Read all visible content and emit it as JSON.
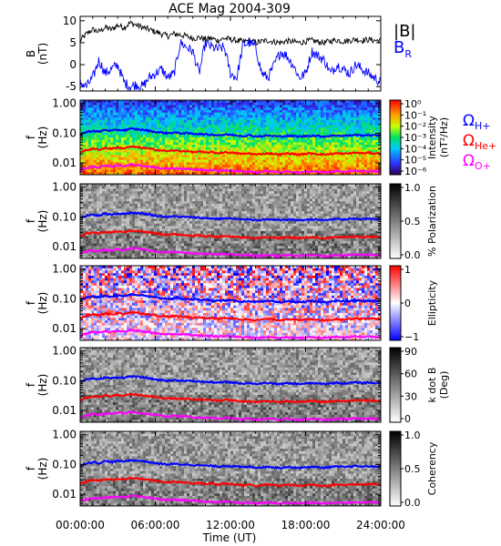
{
  "chart_data": {
    "type": "multi-panel spectrogram",
    "title": "ACE Mag 2004-309",
    "xlabel": "Time (UT)",
    "x_ticks": [
      "00:00:00",
      "06:00:00",
      "12:00:00",
      "18:00:00",
      "24:00:00"
    ],
    "xlim_hours": [
      0,
      24
    ],
    "colors": {
      "B_total": "#000000",
      "B_R": "#0000ff",
      "H_plus": "#0000ff",
      "He_plus": "#ff0000",
      "O_plus": "#ff00ff"
    },
    "panels": [
      {
        "id": "field",
        "type": "line",
        "ylabel": [
          "B",
          "(nT)"
        ],
        "y_ticks": [
          "10",
          "5",
          "0",
          "-5"
        ],
        "ylim": [
          -6,
          11
        ],
        "legend": [
          "|B|",
          "B"
        ],
        "legend_subscript": "R",
        "series": [
          {
            "name": "|B|",
            "x": [
              0,
              0.5,
              1,
              1.5,
              2,
              2.5,
              3,
              3.5,
              4,
              4.5,
              5,
              5.5,
              6,
              6.5,
              7,
              7.5,
              8,
              8.5,
              9,
              9.5,
              10,
              10.5,
              11,
              11.5,
              12,
              12.5,
              13,
              13.5,
              14,
              14.5,
              15,
              15.5,
              16,
              16.5,
              17,
              17.5,
              18,
              18.5,
              19,
              19.5,
              20,
              20.5,
              21,
              21.5,
              22,
              22.5,
              23,
              23.5,
              24
            ],
            "values": [
              5.5,
              7,
              8,
              7.5,
              8.5,
              8,
              9,
              8.5,
              9.5,
              9,
              8.5,
              8,
              7.5,
              7,
              6.5,
              7,
              6.8,
              6.5,
              6,
              6.2,
              5.8,
              6,
              5.5,
              6,
              5.8,
              5.5,
              5.2,
              5.5,
              5,
              5.3,
              5.5,
              5.2,
              5,
              5.4,
              5.2,
              5,
              5.3,
              5.5,
              5.2,
              5,
              5.4,
              5.6,
              5.3,
              5.5,
              5.8,
              5.5,
              5.7,
              5.5,
              5.5
            ]
          },
          {
            "name": "B_R",
            "x": [
              0,
              0.5,
              1,
              1.5,
              2,
              2.5,
              3,
              3.5,
              4,
              4.5,
              5,
              5.5,
              6,
              6.5,
              7,
              7.5,
              8,
              8.5,
              9,
              9.5,
              10,
              10.5,
              11,
              11.5,
              12,
              12.5,
              13,
              13.5,
              14,
              14.5,
              15,
              15.5,
              16,
              16.5,
              17,
              17.5,
              18,
              18.5,
              19,
              19.5,
              20,
              20.5,
              21,
              21.5,
              22,
              22.5,
              23,
              23.5,
              24
            ],
            "values": [
              -4,
              -5,
              -3,
              1,
              -2,
              -1,
              0,
              -4,
              -5,
              -4.5,
              -5,
              -3,
              -2,
              -1,
              -3,
              -2,
              5,
              4,
              3,
              -2,
              5,
              4,
              3.5,
              4,
              -2,
              -3,
              4.5,
              5,
              4,
              -2,
              -3,
              0,
              3,
              2,
              0,
              -3,
              -2,
              3,
              2,
              1,
              -2,
              0,
              -1,
              -2,
              0,
              -1,
              -2,
              -3,
              -4
            ]
          }
        ]
      },
      {
        "id": "intensity",
        "type": "heatmap",
        "ylabel": [
          "f",
          "(Hz)"
        ],
        "y_ticks": [
          "1.00",
          "0.10",
          "0.01"
        ],
        "ylim": [
          0.004,
          1.3
        ],
        "yscale": "log",
        "colorbar": {
          "label": [
            "Intensity",
            "(nT²/Hz)"
          ],
          "ticks": [
            "10⁰",
            "10⁻¹",
            "10⁻²",
            "10⁻³",
            "10⁻⁴",
            "10⁻⁵",
            "10⁻⁶"
          ],
          "colormap": "rainbow"
        },
        "legend": [
          {
            "symbol": "Ω",
            "sub": "H+",
            "color": "#0000ff"
          },
          {
            "symbol": "Ω",
            "sub": "He+",
            "color": "#ff0000"
          },
          {
            "symbol": "Ω",
            "sub": "O+",
            "color": "#ff00ff"
          }
        ]
      },
      {
        "id": "polarization",
        "type": "heatmap",
        "ylabel": [
          "f",
          "(Hz)"
        ],
        "y_ticks": [
          "1.00",
          "0.10",
          "0.01"
        ],
        "yscale": "log",
        "colorbar": {
          "label": [
            "% Polarization"
          ],
          "ticks": [
            "1.0",
            "0.5",
            "0.0"
          ],
          "colormap": "gray"
        }
      },
      {
        "id": "ellipticity",
        "type": "heatmap",
        "ylabel": [
          "f",
          "(Hz)"
        ],
        "y_ticks": [
          "1.00",
          "0.10",
          "0.01"
        ],
        "yscale": "log",
        "colorbar": {
          "label": [
            "Ellipticity"
          ],
          "ticks": [
            "1",
            "0",
            "−1"
          ],
          "colormap": "blue-white-red"
        }
      },
      {
        "id": "kdotb",
        "type": "heatmap",
        "ylabel": [
          "f",
          "(Hz)"
        ],
        "y_ticks": [
          "1.00",
          "0.10",
          "0.01"
        ],
        "yscale": "log",
        "colorbar": {
          "label": [
            "k dot B",
            "(Deg)"
          ],
          "ticks": [
            "90",
            "60",
            "30",
            "0"
          ],
          "colormap": "gray"
        }
      },
      {
        "id": "coherency",
        "type": "heatmap",
        "ylabel": [
          "f",
          "(Hz)"
        ],
        "y_ticks": [
          "1.00",
          "0.10",
          "0.01"
        ],
        "yscale": "log",
        "colorbar": {
          "label": [
            "Coherency"
          ],
          "ticks": [
            "1.0",
            "0.5",
            "0.0"
          ],
          "colormap": "gray"
        }
      }
    ],
    "gyrofrequency_curves": {
      "x": [
        0,
        0.5,
        1,
        1.5,
        2,
        2.5,
        3,
        3.5,
        4,
        4.5,
        5,
        5.5,
        6,
        6.5,
        7,
        7.5,
        8,
        8.5,
        9,
        9.5,
        10,
        10.5,
        11,
        11.5,
        12,
        12.5,
        13,
        13.5,
        14,
        14.5,
        15,
        15.5,
        16,
        16.5,
        17,
        17.5,
        18,
        18.5,
        19,
        19.5,
        20,
        20.5,
        21,
        21.5,
        22,
        22.5,
        23,
        23.5,
        24
      ],
      "H_plus": [
        0.09,
        0.11,
        0.12,
        0.11,
        0.13,
        0.12,
        0.13,
        0.125,
        0.14,
        0.135,
        0.13,
        0.12,
        0.11,
        0.105,
        0.1,
        0.105,
        0.1,
        0.1,
        0.095,
        0.095,
        0.09,
        0.09,
        0.085,
        0.09,
        0.088,
        0.085,
        0.08,
        0.085,
        0.078,
        0.08,
        0.083,
        0.08,
        0.077,
        0.082,
        0.08,
        0.077,
        0.08,
        0.083,
        0.08,
        0.077,
        0.082,
        0.085,
        0.081,
        0.084,
        0.088,
        0.084,
        0.087,
        0.084,
        0.084
      ],
      "He_plus": [
        0.022,
        0.027,
        0.03,
        0.028,
        0.032,
        0.03,
        0.033,
        0.031,
        0.035,
        0.034,
        0.032,
        0.03,
        0.028,
        0.026,
        0.025,
        0.026,
        0.025,
        0.025,
        0.023,
        0.024,
        0.022,
        0.023,
        0.021,
        0.023,
        0.022,
        0.021,
        0.02,
        0.021,
        0.019,
        0.02,
        0.021,
        0.02,
        0.019,
        0.021,
        0.02,
        0.019,
        0.02,
        0.021,
        0.02,
        0.019,
        0.02,
        0.021,
        0.02,
        0.021,
        0.022,
        0.021,
        0.022,
        0.021,
        0.021
      ],
      "O_plus": [
        0.0056,
        0.0068,
        0.0075,
        0.007,
        0.008,
        0.0075,
        0.0083,
        0.0078,
        0.0088,
        0.0085,
        0.008,
        0.0075,
        0.007,
        0.0066,
        0.0063,
        0.0066,
        0.0063,
        0.0063,
        0.0058,
        0.006,
        0.0055,
        0.0057,
        0.0053,
        0.0057,
        0.0055,
        0.0053,
        0.005,
        0.0053,
        0.0048,
        0.005,
        0.0052,
        0.005,
        0.0048,
        0.0052,
        0.005,
        0.0048,
        0.005,
        0.0052,
        0.005,
        0.0048,
        0.005,
        0.0053,
        0.005,
        0.0052,
        0.0055,
        0.0052,
        0.0054,
        0.0052,
        0.0052
      ]
    }
  }
}
